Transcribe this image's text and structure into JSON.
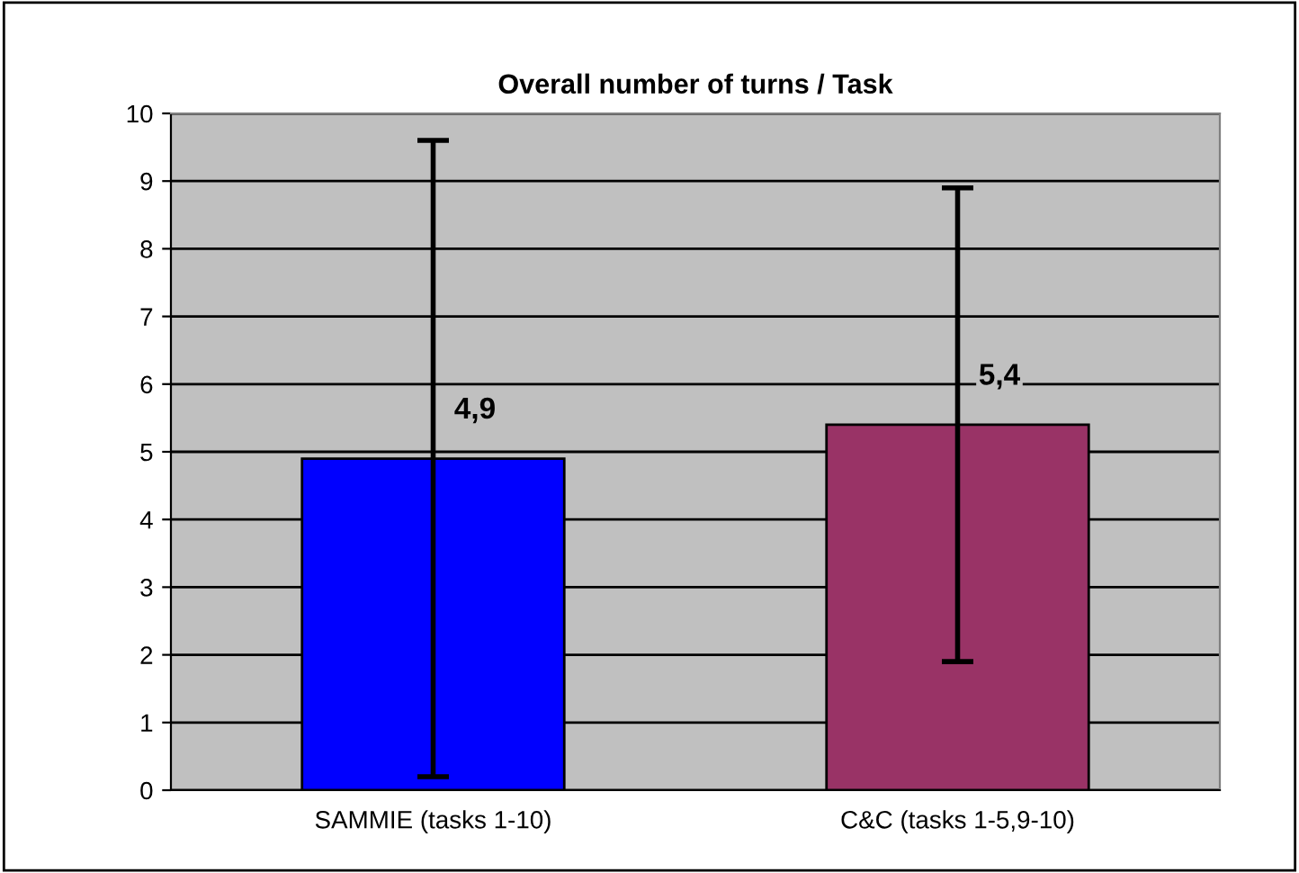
{
  "chart_data": {
    "type": "bar",
    "title": "Overall number of turns / Task",
    "categories": [
      "SAMMIE (tasks 1-10)",
      "C&C (tasks 1-5,9-10)"
    ],
    "values": [
      4.9,
      5.4
    ],
    "colors": [
      "#0000ff",
      "#993366"
    ],
    "errors": [
      [
        0.2,
        9.6
      ],
      [
        1.9,
        8.9
      ]
    ],
    "value_labels": [
      "4,9",
      "5,4"
    ],
    "ylim": [
      0,
      10
    ],
    "yticks": [
      0,
      1,
      2,
      3,
      4,
      5,
      6,
      7,
      8,
      9,
      10
    ],
    "grid": "y"
  }
}
